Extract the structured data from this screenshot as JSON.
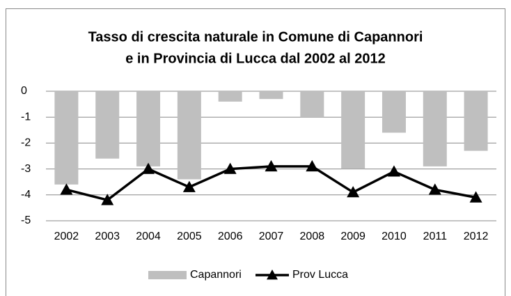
{
  "chart_data": {
    "type": "bar-line",
    "title": [
      "Tasso di crescita naturale in Comune di Capannori",
      "e in Provincia di Lucca dal 2002 al 2012"
    ],
    "categories": [
      "2002",
      "2003",
      "2004",
      "2005",
      "2006",
      "2007",
      "2008",
      "2009",
      "2010",
      "2011",
      "2012"
    ],
    "series": [
      {
        "name": "Capannori",
        "type": "bar",
        "color": "#bfbfbf",
        "values": [
          -3.6,
          -2.6,
          -2.9,
          -3.4,
          -0.4,
          -0.3,
          -1.0,
          -3.0,
          -1.6,
          -2.9,
          -2.3
        ]
      },
      {
        "name": "Prov Lucca",
        "type": "line",
        "color": "#000000",
        "values": [
          -3.8,
          -4.2,
          -3.0,
          -3.7,
          -3.0,
          -2.9,
          -2.9,
          -3.9,
          -3.1,
          -3.8,
          -4.1
        ]
      }
    ],
    "ylim": [
      -5,
      0
    ],
    "yticks": [
      0,
      -1,
      -2,
      -3,
      -4,
      -5
    ],
    "grid": true,
    "legend": "bottom"
  }
}
